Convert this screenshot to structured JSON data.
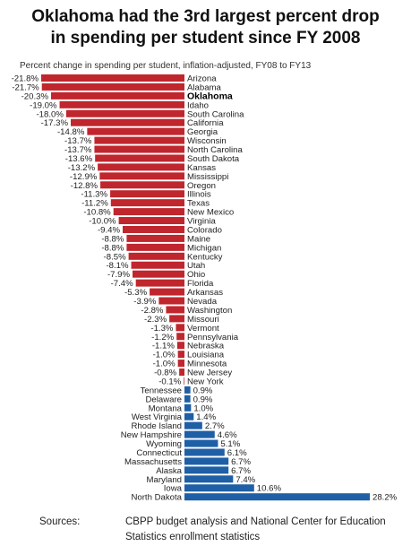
{
  "title_line1": "Oklahoma had the 3rd largest percent drop",
  "title_line2": "in spending per student since FY 2008",
  "sources_label": "Sources:",
  "sources_text": "CBPP budget analysis and National Center for Education Statistics enrollment statistics",
  "colors": {
    "negative": "#c0262d",
    "positive": "#1f5fa6"
  },
  "chart_data": {
    "type": "bar",
    "orientation": "horizontal",
    "title": "Oklahoma had the 3rd largest percent drop in spending per student since FY 2008",
    "subtitle": "Percent change in spending per student, inflation-adjusted, FY08 to FY13",
    "highlight": "Oklahoma",
    "categories": [
      "Arizona",
      "Alabama",
      "Oklahoma",
      "Idaho",
      "South Carolina",
      "California",
      "Georgia",
      "Wisconsin",
      "North Carolina",
      "South Dakota",
      "Kansas",
      "Mississippi",
      "Oregon",
      "Illinois",
      "Texas",
      "New Mexico",
      "Virginia",
      "Colorado",
      "Maine",
      "Michigan",
      "Kentucky",
      "Utah",
      "Ohio",
      "Florida",
      "Arkansas",
      "Nevada",
      "Washington",
      "Missouri",
      "Vermont",
      "Pennsylvania",
      "Nebraska",
      "Louisiana",
      "Minnesota",
      "New Jersey",
      "New York",
      "Tennessee",
      "Delaware",
      "Montana",
      "West Virginia",
      "Rhode Island",
      "New Hampshire",
      "Wyoming",
      "Connecticut",
      "Massachusetts",
      "Alaska",
      "Maryland",
      "Iowa",
      "North Dakota"
    ],
    "values": [
      -21.8,
      -21.7,
      -20.3,
      -19.0,
      -18.0,
      -17.3,
      -14.8,
      -13.7,
      -13.7,
      -13.6,
      -13.2,
      -12.9,
      -12.8,
      -11.3,
      -11.2,
      -10.8,
      -10.0,
      -9.4,
      -8.8,
      -8.8,
      -8.5,
      -8.1,
      -7.9,
      -7.4,
      -5.3,
      -3.9,
      -2.8,
      -2.3,
      -1.3,
      -1.2,
      -1.1,
      -1.0,
      -1.0,
      -0.8,
      -0.1,
      0.9,
      0.9,
      1.0,
      1.4,
      2.7,
      4.6,
      5.1,
      6.1,
      6.7,
      6.7,
      7.4,
      10.6,
      28.2
    ],
    "labels": [
      "-21.8%",
      "-21.7%",
      "-20.3%",
      "-19.0%",
      "-18.0%",
      "-17.3%",
      "-14.8%",
      "-13.7%",
      "-13.7%",
      "-13.6%",
      "-13.2%",
      "-12.9%",
      "-12.8%",
      "-11.3%",
      "-11.2%",
      "-10.8%",
      "-10.0%",
      "-9.4%",
      "-8.8%",
      "-8.8%",
      "-8.5%",
      "-8.1%",
      "-7.9%",
      "-7.4%",
      "-5.3%",
      "-3.9%",
      "-2.8%",
      "-2.3%",
      "-1.3%",
      "-1.2%",
      "-1.1%",
      "-1.0%",
      "-1.0%",
      "-0.8%",
      "-0.1%",
      "0.9%",
      "0.9%",
      "1.0%",
      "1.4%",
      "2.7%",
      "4.6%",
      "5.1%",
      "6.1%",
      "6.7%",
      "6.7%",
      "7.4%",
      "10.6%",
      "28.2%"
    ],
    "xlabel": "",
    "ylabel": "",
    "grid": false,
    "legend": "none"
  }
}
